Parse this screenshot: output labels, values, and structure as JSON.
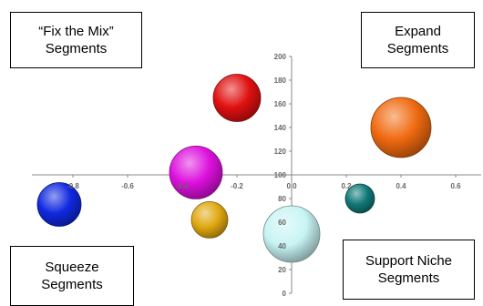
{
  "quadrants": {
    "top_left": {
      "line1": "“Fix the Mix”",
      "line2": "Segments"
    },
    "top_right": {
      "line1": "Expand",
      "line2": "Segments"
    },
    "bottom_left": {
      "line1": "Squeeze",
      "line2": "Segments"
    },
    "bottom_right": {
      "line1": "Support Niche",
      "line2": "Segments"
    }
  },
  "chart_data": {
    "type": "bubble",
    "title": "",
    "xlabel": "",
    "ylabel": "",
    "xlim": [
      -0.9,
      0.6
    ],
    "ylim": [
      0,
      200
    ],
    "x_ticks": [
      -0.8,
      -0.6,
      -0.4,
      -0.2,
      0.0,
      0.2,
      0.4,
      0.6
    ],
    "y_ticks": [
      0,
      20,
      40,
      60,
      80,
      100,
      120,
      140,
      160,
      180,
      200
    ],
    "x_axis_crosses_y": 100,
    "y_axis_crosses_x": 0,
    "points": [
      {
        "x": -0.2,
        "y": 165,
        "size": 26,
        "color": "#e01010"
      },
      {
        "x": 0.4,
        "y": 140,
        "size": 33,
        "color": "#f06a10"
      },
      {
        "x": -0.35,
        "y": 102,
        "size": 29,
        "color": "#dd10dd"
      },
      {
        "x": -0.85,
        "y": 75,
        "size": 24,
        "color": "#1028e0"
      },
      {
        "x": 0.25,
        "y": 80,
        "size": 16,
        "color": "#117878"
      },
      {
        "x": -0.3,
        "y": 62,
        "size": 20,
        "color": "#e0a810"
      },
      {
        "x": 0.0,
        "y": 50,
        "size": 31,
        "color": "#c8f4f4"
      }
    ]
  }
}
